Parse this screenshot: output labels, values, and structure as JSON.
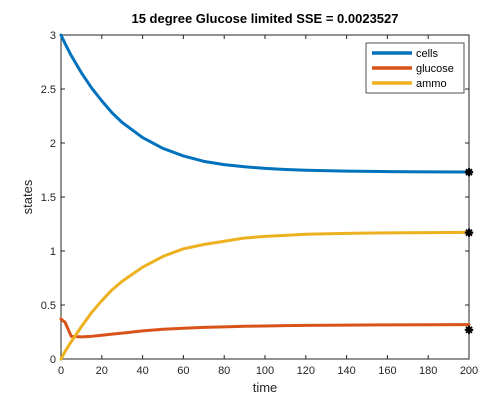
{
  "chart_data": {
    "type": "line",
    "title": "15 degree Glucose limited  SSE = 0.0023527",
    "xlabel": "time",
    "ylabel": "states",
    "xlim": [
      0,
      200
    ],
    "ylim": [
      0,
      3
    ],
    "xticks": [
      "0",
      "20",
      "40",
      "60",
      "80",
      "100",
      "120",
      "140",
      "160",
      "180",
      "200"
    ],
    "yticks": [
      "0",
      "0.5",
      "1",
      "1.5",
      "2",
      "2.5",
      "3"
    ],
    "legend_position": "top-right",
    "grid": false,
    "x": [
      0,
      2,
      5,
      10,
      15,
      20,
      25,
      30,
      40,
      50,
      60,
      70,
      80,
      90,
      100,
      110,
      120,
      140,
      160,
      180,
      200
    ],
    "series": [
      {
        "name": "cells",
        "color": "#0072BD",
        "values": [
          3.0,
          2.92,
          2.81,
          2.65,
          2.51,
          2.39,
          2.28,
          2.19,
          2.05,
          1.95,
          1.88,
          1.83,
          1.8,
          1.78,
          1.765,
          1.755,
          1.748,
          1.74,
          1.735,
          1.733,
          1.732
        ]
      },
      {
        "name": "glucose",
        "color": "#D95319",
        "values": [
          0.37,
          0.34,
          0.21,
          0.205,
          0.21,
          0.22,
          0.23,
          0.24,
          0.26,
          0.275,
          0.285,
          0.293,
          0.298,
          0.303,
          0.306,
          0.309,
          0.311,
          0.314,
          0.316,
          0.317,
          0.318
        ]
      },
      {
        "name": "ammo",
        "color": "#EDB120",
        "values": [
          0.0,
          0.07,
          0.16,
          0.3,
          0.43,
          0.54,
          0.64,
          0.72,
          0.85,
          0.95,
          1.02,
          1.06,
          1.09,
          1.12,
          1.135,
          1.145,
          1.155,
          1.163,
          1.168,
          1.17,
          1.172
        ]
      }
    ],
    "data_points": {
      "x": [
        200,
        200,
        200
      ],
      "y": [
        1.73,
        1.17,
        0.27
      ],
      "marker": "asterisk",
      "color": "#000000"
    }
  }
}
